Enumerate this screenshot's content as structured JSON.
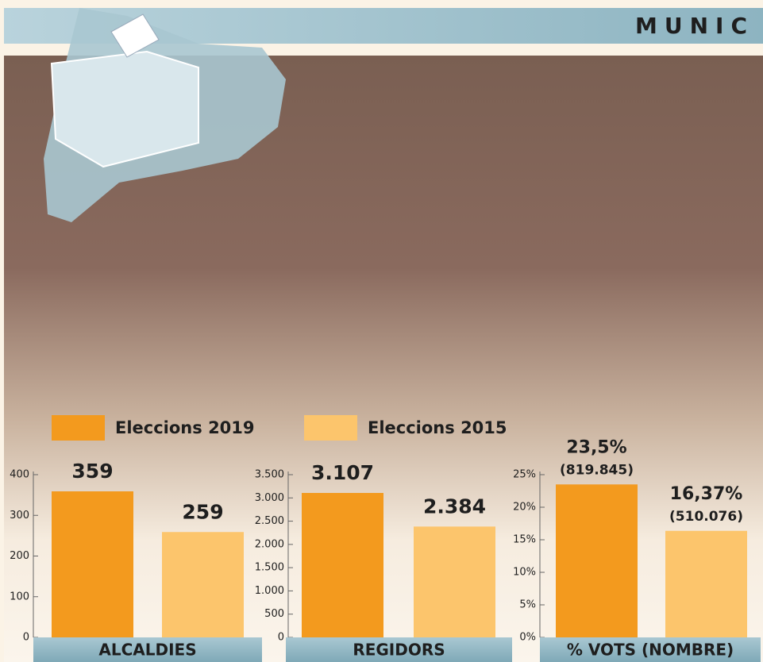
{
  "header": "MUNIC",
  "legend": [
    {
      "name": "Eleccions 2019",
      "color": "#f39a1e"
    },
    {
      "name": "Eleccions 2015",
      "color": "#fcc56c"
    }
  ],
  "chart_data": [
    {
      "type": "bar",
      "title": "ALCALDIES",
      "values": [
        359,
        259
      ],
      "ylim": [
        0,
        400
      ],
      "yticks": [
        0,
        100,
        200,
        300,
        400
      ]
    },
    {
      "type": "bar",
      "title": "REGIDORS",
      "values": [
        3107,
        2384
      ],
      "value_labels": [
        "3.107",
        "2.384"
      ],
      "ylim": [
        0,
        3500
      ],
      "yticks": [
        0,
        500,
        {
          "value": 1000,
          "label": "1.000"
        },
        {
          "value": 1500,
          "label": "1.500"
        },
        {
          "value": 2000,
          "label": "2.000"
        },
        {
          "value": 2500,
          "label": "2.500"
        },
        {
          "value": 3000,
          "label": "3.000"
        },
        {
          "value": 3500,
          "label": "3.500"
        }
      ]
    },
    {
      "type": "bar",
      "title": "% VOTS (NOMBRE)",
      "values": [
        23.5,
        16.37
      ],
      "value_labels": [
        "23,5%",
        "16,37%"
      ],
      "vote_labels": [
        "(819.845)",
        "(510.076)"
      ],
      "ylim": [
        0,
        25
      ],
      "yticks": [
        {
          "value": 0,
          "label": "0%"
        },
        {
          "value": 5,
          "label": "5%"
        },
        {
          "value": 10,
          "label": "10%"
        },
        {
          "value": 15,
          "label": "15%"
        },
        {
          "value": 20,
          "label": "20%"
        },
        {
          "value": 25,
          "label": "25%"
        }
      ]
    }
  ]
}
